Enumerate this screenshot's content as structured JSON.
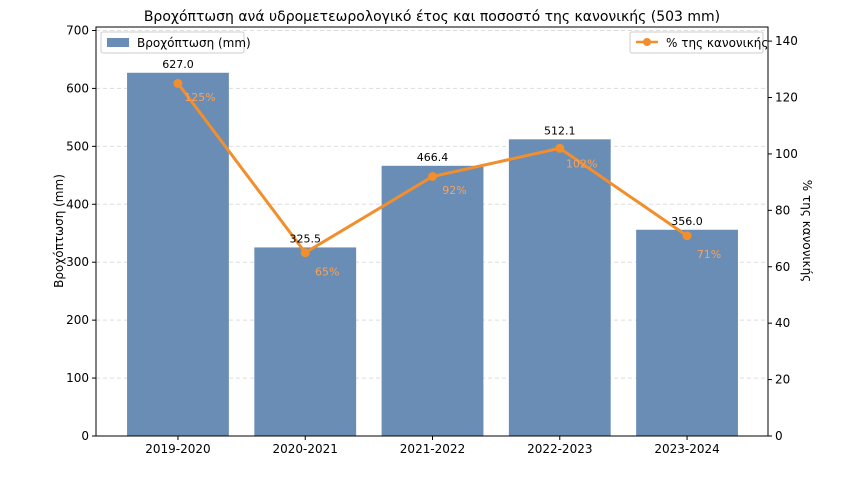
{
  "chart_data": {
    "type": "bar",
    "title": "Βροχόπτωση ανά υδρομετεωρολογικό έτος και ποσοστό της κανονικής (503 mm)",
    "xlabel": "",
    "ylabel": "Βροχόπτωση (mm)",
    "y2label": "% της κανονικής",
    "categories": [
      "2019-2020",
      "2020-2021",
      "2021-2022",
      "2022-2023",
      "2023-2024"
    ],
    "series": [
      {
        "name": "Βροχόπτωση (mm)",
        "type": "bar",
        "axis": "left",
        "color": "#6a8db5",
        "values": [
          627.0,
          325.5,
          466.4,
          512.1,
          356.0
        ],
        "labels": [
          "627.0",
          "325.5",
          "466.4",
          "512.1",
          "356.0"
        ]
      },
      {
        "name": "% της κανονικής",
        "type": "line",
        "axis": "right",
        "color": "#f28e2b",
        "values": [
          125,
          65,
          92,
          102,
          71
        ],
        "labels": [
          "125%",
          "65%",
          "92%",
          "102%",
          "71%"
        ]
      }
    ],
    "ylim": [
      0,
      706
    ],
    "y2lim": [
      0,
      145
    ],
    "yticks": [
      0,
      100,
      200,
      300,
      400,
      500,
      600,
      700
    ],
    "y2ticks": [
      0,
      20,
      40,
      60,
      80,
      100,
      120,
      140
    ],
    "grid": "horizontal dashed",
    "legend": [
      "top-left",
      "top-right"
    ]
  }
}
